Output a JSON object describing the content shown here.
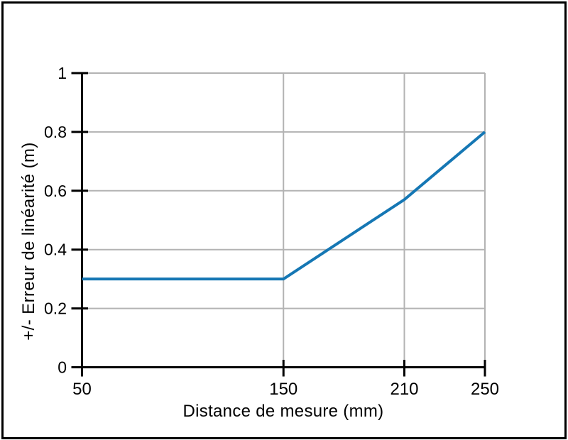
{
  "frame": {
    "background_color": "#ffffff",
    "border_color": "#000000"
  },
  "chart_data": {
    "type": "line",
    "title": "",
    "xlabel": "Distance de mesure (mm)",
    "ylabel": "+/- Erreur de linéarité (m)",
    "xlim": [
      50,
      250
    ],
    "ylim": [
      0,
      1
    ],
    "x_ticks": [
      50,
      150,
      210,
      250
    ],
    "y_ticks": [
      0,
      0.2,
      0.4,
      0.6,
      0.8,
      1
    ],
    "grid": true,
    "legend": false,
    "grid_color": "#b3b3b3",
    "axis_color": "#000000",
    "series": [
      {
        "name": "erreur-de-linearite",
        "color": "#1577b4",
        "points": [
          [
            50,
            0.3
          ],
          [
            150,
            0.3
          ],
          [
            210,
            0.57
          ],
          [
            250,
            0.8
          ]
        ]
      }
    ]
  }
}
